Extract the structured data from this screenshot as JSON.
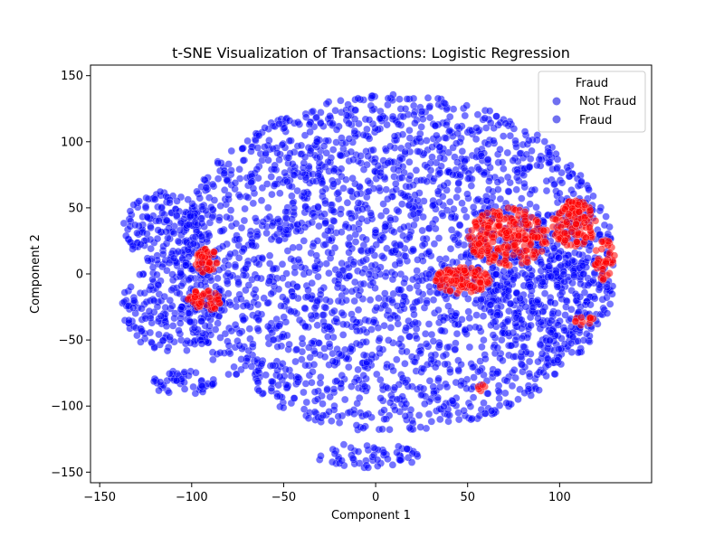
{
  "chart_data": {
    "type": "scatter",
    "title": "t-SNE Visualization of Transactions: Logistic Regression",
    "xlabel": "Component 1",
    "ylabel": "Component 2",
    "xlim": [
      -155,
      150
    ],
    "ylim": [
      -158,
      158
    ],
    "xticks": [
      -150,
      -100,
      -50,
      0,
      50,
      100
    ],
    "yticks": [
      -150,
      -100,
      -50,
      0,
      50,
      100,
      150
    ],
    "grid": false,
    "legend": {
      "title": "Fraud",
      "placement": "top-right",
      "entries": [
        "Not Fraud",
        "Fraud"
      ]
    },
    "colors": {
      "not_fraud": "#0000ff",
      "fraud": "#ff0000",
      "legend_marker": "#7070f0"
    },
    "series": [
      {
        "name": "Not Fraud",
        "color": "#0000ff",
        "regions": [
          {
            "cx": 10,
            "cy": 8,
            "rx": 120,
            "ry": 128,
            "n": 2600
          },
          {
            "cx": -115,
            "cy": 35,
            "rx": 22,
            "ry": 28,
            "n": 160
          },
          {
            "cx": -110,
            "cy": -25,
            "rx": 28,
            "ry": 35,
            "n": 200
          },
          {
            "cx": -105,
            "cy": -82,
            "rx": 18,
            "ry": 10,
            "n": 50
          },
          {
            "cx": -5,
            "cy": -138,
            "rx": 30,
            "ry": 10,
            "n": 60
          },
          {
            "cx": 95,
            "cy": -20,
            "rx": 35,
            "ry": 40,
            "n": 180
          }
        ]
      },
      {
        "name": "Fraud",
        "color": "#ff0000",
        "regions": [
          {
            "cx": 72,
            "cy": 28,
            "rx": 22,
            "ry": 22,
            "n": 220
          },
          {
            "cx": 108,
            "cy": 38,
            "rx": 12,
            "ry": 18,
            "n": 120
          },
          {
            "cx": 47,
            "cy": -5,
            "rx": 15,
            "ry": 10,
            "n": 100
          },
          {
            "cx": 125,
            "cy": 10,
            "rx": 6,
            "ry": 16,
            "n": 40
          },
          {
            "cx": -92,
            "cy": 10,
            "rx": 6,
            "ry": 10,
            "n": 40
          },
          {
            "cx": -93,
            "cy": -20,
            "rx": 10,
            "ry": 8,
            "n": 50
          },
          {
            "cx": 113,
            "cy": -35,
            "rx": 6,
            "ry": 4,
            "n": 12
          },
          {
            "cx": 57,
            "cy": -86,
            "rx": 3,
            "ry": 3,
            "n": 5
          }
        ]
      }
    ]
  }
}
